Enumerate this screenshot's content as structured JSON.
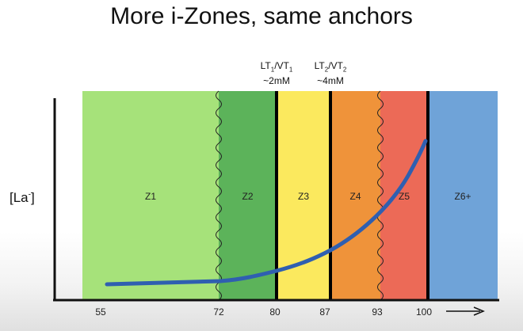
{
  "title": "More i-Zones, same anchors",
  "y_axis_label": "[La",
  "y_axis_label_sup": "-",
  "y_axis_label_close": "]",
  "anchors": [
    {
      "part1": "LT",
      "sub1": "1",
      "part2": "/VT",
      "sub2": "1",
      "value": "~2mM"
    },
    {
      "part1": "LT",
      "sub1": "2",
      "part2": "/VT",
      "sub2": "2",
      "value": "~4mM"
    }
  ],
  "zones": [
    {
      "label": "Z1",
      "from": 55,
      "to": 72,
      "color": "#a6e27a"
    },
    {
      "label": "Z2",
      "from": 72,
      "to": 80,
      "color": "#5cb35a"
    },
    {
      "label": "Z3",
      "from": 80,
      "to": 87,
      "color": "#fbe95e"
    },
    {
      "label": "Z4",
      "from": 87,
      "to": 93,
      "color": "#ef933a"
    },
    {
      "label": "Z5",
      "from": 93,
      "to": 100,
      "color": "#ec6a57"
    },
    {
      "label": "Z6+",
      "from": 100,
      "to": 105,
      "color": "#6fa3d8"
    }
  ],
  "x_ticks": [
    "55",
    "72",
    "80",
    "87",
    "93",
    "100"
  ],
  "curve_color": "#2f5fb0"
}
